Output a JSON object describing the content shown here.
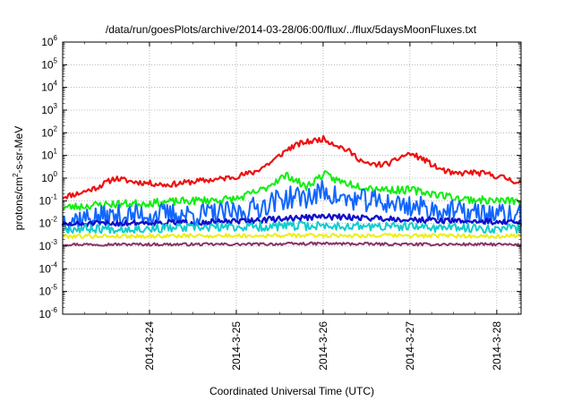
{
  "chart_data": {
    "type": "line",
    "title": "/data/run/goesPlots/archive/2014-03-28/06:00/flux/../flux/5daysMoonFluxes.txt",
    "xlabel": "Coordinated Universal Time (UTC)",
    "ylabel": {
      "pre": "protons/cm",
      "sup": "2",
      "post": "-s-sr-MeV"
    },
    "yscale": "log",
    "ylim": [
      1e-06,
      1000000.0
    ],
    "xlim": [
      0.0,
      5.28
    ],
    "x_units": "days since 2014-03-23 00:00 UTC",
    "grid": true,
    "legend": "none",
    "yticks": [
      {
        "base": "10",
        "exp": "-6"
      },
      {
        "base": "10",
        "exp": "-5"
      },
      {
        "base": "10",
        "exp": "-4"
      },
      {
        "base": "10",
        "exp": "-3"
      },
      {
        "base": "10",
        "exp": "-2"
      },
      {
        "base": "10",
        "exp": "-1"
      },
      {
        "base": "10",
        "exp": "0"
      },
      {
        "base": "10",
        "exp": "1"
      },
      {
        "base": "10",
        "exp": "2"
      },
      {
        "base": "10",
        "exp": "3"
      },
      {
        "base": "10",
        "exp": "4"
      },
      {
        "base": "10",
        "exp": "5"
      },
      {
        "base": "10",
        "exp": "6"
      }
    ],
    "xticks": [
      {
        "label": "2014-3-24",
        "x": 1.0
      },
      {
        "label": "2014-3-25",
        "x": 2.0
      },
      {
        "label": "2014-3-26",
        "x": 3.0
      },
      {
        "label": "2014-3-27",
        "x": 4.0
      },
      {
        "label": "2014-3-28",
        "x": 5.0
      }
    ],
    "series": [
      {
        "color": "#ee1111",
        "width": 2.2,
        "noise": 0.25,
        "seed": 11,
        "points": [
          [
            0.0,
            0.15
          ],
          [
            0.2,
            0.22
          ],
          [
            0.4,
            0.4
          ],
          [
            0.6,
            1.0
          ],
          [
            0.8,
            0.7
          ],
          [
            1.0,
            0.6
          ],
          [
            1.2,
            0.5
          ],
          [
            1.5,
            0.7
          ],
          [
            1.8,
            0.9
          ],
          [
            2.0,
            1.2
          ],
          [
            2.2,
            1.8
          ],
          [
            2.4,
            5.0
          ],
          [
            2.6,
            20.0
          ],
          [
            2.75,
            35.0
          ],
          [
            2.9,
            45.0
          ],
          [
            3.0,
            55.0
          ],
          [
            3.15,
            30.0
          ],
          [
            3.3,
            15.0
          ],
          [
            3.5,
            4.0
          ],
          [
            3.7,
            4.0
          ],
          [
            3.8,
            5.0
          ],
          [
            3.9,
            9.0
          ],
          [
            4.0,
            12.0
          ],
          [
            4.15,
            7.0
          ],
          [
            4.3,
            3.0
          ],
          [
            4.5,
            1.5
          ],
          [
            4.7,
            1.8
          ],
          [
            4.9,
            1.5
          ],
          [
            5.1,
            1.0
          ],
          [
            5.28,
            0.6
          ]
        ]
      },
      {
        "color": "#11ee11",
        "width": 2.0,
        "noise": 0.35,
        "seed": 23,
        "points": [
          [
            0.0,
            0.05
          ],
          [
            0.5,
            0.07
          ],
          [
            1.0,
            0.08
          ],
          [
            1.5,
            0.1
          ],
          [
            2.0,
            0.12
          ],
          [
            2.3,
            0.3
          ],
          [
            2.5,
            1.0
          ],
          [
            2.6,
            1.3
          ],
          [
            2.8,
            0.4
          ],
          [
            3.0,
            1.5
          ],
          [
            3.2,
            0.7
          ],
          [
            3.5,
            0.4
          ],
          [
            3.8,
            0.3
          ],
          [
            4.0,
            0.3
          ],
          [
            4.3,
            0.2
          ],
          [
            4.6,
            0.12
          ],
          [
            5.0,
            0.1
          ],
          [
            5.28,
            0.1
          ]
        ]
      },
      {
        "color": "#1166ff",
        "width": 2.0,
        "noise": 1.0,
        "seed": 37,
        "points": [
          [
            0.0,
            0.015
          ],
          [
            0.5,
            0.02
          ],
          [
            1.0,
            0.025
          ],
          [
            1.5,
            0.025
          ],
          [
            2.0,
            0.03
          ],
          [
            2.3,
            0.06
          ],
          [
            2.5,
            0.12
          ],
          [
            2.7,
            0.15
          ],
          [
            2.9,
            0.15
          ],
          [
            3.0,
            0.3
          ],
          [
            3.2,
            0.12
          ],
          [
            3.5,
            0.1
          ],
          [
            3.8,
            0.08
          ],
          [
            4.0,
            0.06
          ],
          [
            4.3,
            0.04
          ],
          [
            4.6,
            0.03
          ],
          [
            5.0,
            0.025
          ],
          [
            5.28,
            0.02
          ]
        ]
      },
      {
        "color": "#1111cc",
        "width": 2.4,
        "noise": 0.25,
        "seed": 51,
        "points": [
          [
            0.0,
            0.009
          ],
          [
            0.5,
            0.01
          ],
          [
            1.0,
            0.011
          ],
          [
            1.5,
            0.011
          ],
          [
            2.0,
            0.012
          ],
          [
            2.5,
            0.016
          ],
          [
            3.0,
            0.02
          ],
          [
            3.5,
            0.018
          ],
          [
            4.0,
            0.015
          ],
          [
            4.5,
            0.013
          ],
          [
            5.0,
            0.012
          ],
          [
            5.28,
            0.011
          ]
        ]
      },
      {
        "color": "#11cccc",
        "width": 2.0,
        "noise": 0.4,
        "seed": 67,
        "points": [
          [
            0.0,
            0.006
          ],
          [
            1.0,
            0.006
          ],
          [
            2.0,
            0.007
          ],
          [
            3.0,
            0.008
          ],
          [
            4.0,
            0.007
          ],
          [
            5.0,
            0.006
          ],
          [
            5.28,
            0.006
          ]
        ]
      },
      {
        "color": "#eeee11",
        "width": 2.0,
        "noise": 0.18,
        "seed": 79,
        "points": [
          [
            0.0,
            0.0028
          ],
          [
            1.0,
            0.0028
          ],
          [
            2.0,
            0.0029
          ],
          [
            3.0,
            0.003
          ],
          [
            4.0,
            0.0029
          ],
          [
            5.0,
            0.0028
          ],
          [
            5.28,
            0.0028
          ]
        ]
      },
      {
        "color": "#883366",
        "width": 2.0,
        "noise": 0.12,
        "seed": 97,
        "points": [
          [
            0.0,
            0.0012
          ],
          [
            1.0,
            0.0012
          ],
          [
            2.0,
            0.0012
          ],
          [
            3.0,
            0.0013
          ],
          [
            4.0,
            0.0012
          ],
          [
            5.0,
            0.0012
          ],
          [
            5.28,
            0.0011
          ]
        ]
      }
    ]
  }
}
